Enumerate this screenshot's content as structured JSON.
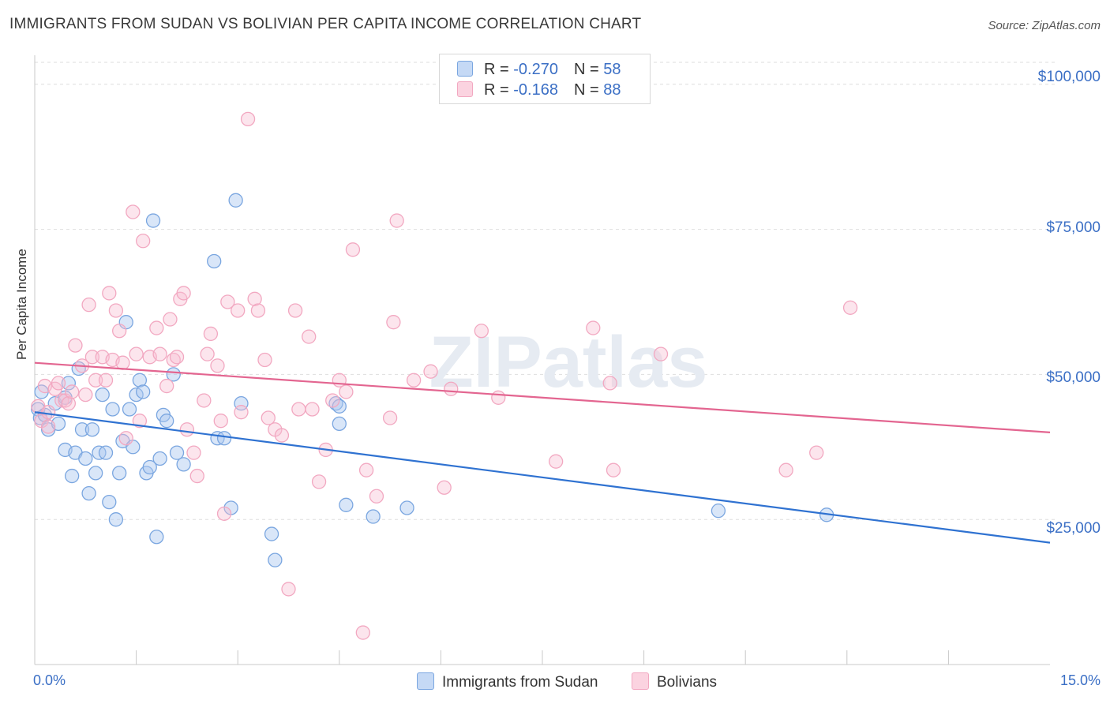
{
  "title": "IMMIGRANTS FROM SUDAN VS BOLIVIAN PER CAPITA INCOME CORRELATION CHART",
  "source": "Source: ZipAtlas.com",
  "watermark": "ZIPatlas",
  "legend_top": {
    "rows": [
      {
        "r_label": "R = ",
        "r_value": "-0.270",
        "n_label": "N = ",
        "n_value": "58"
      },
      {
        "r_label": "R = ",
        "r_value": "-0.168",
        "n_label": "N = ",
        "n_value": "88"
      }
    ]
  },
  "chart_data": {
    "type": "scatter",
    "title": "IMMIGRANTS FROM SUDAN VS BOLIVIAN PER CAPITA INCOME CORRELATION CHART",
    "xlabel": "",
    "ylabel": "Per Capita Income",
    "xlim": [
      0,
      15
    ],
    "ylim": [
      0,
      105000
    ],
    "x_tick_labels": [
      "0.0%",
      "15.0%"
    ],
    "y_ticks": [
      25000,
      50000,
      75000,
      100000
    ],
    "y_tick_labels": [
      "$25,000",
      "$50,000",
      "$75,000",
      "$100,000"
    ],
    "grid": true,
    "legend_position": "bottom",
    "series": [
      {
        "name": "Immigrants from Sudan",
        "color": "#7aa6e0",
        "line_color": "#2f72d1",
        "trend": {
          "x": [
            0,
            15
          ],
          "y": [
            43500,
            21000
          ]
        },
        "points": [
          [
            0.05,
            44000
          ],
          [
            0.08,
            42500
          ],
          [
            0.1,
            47000
          ],
          [
            0.15,
            43000
          ],
          [
            0.2,
            40500
          ],
          [
            0.3,
            45000
          ],
          [
            0.35,
            41500
          ],
          [
            0.45,
            46000
          ],
          [
            0.45,
            37000
          ],
          [
            0.5,
            48500
          ],
          [
            0.55,
            32500
          ],
          [
            0.6,
            36500
          ],
          [
            0.65,
            51000
          ],
          [
            0.7,
            40500
          ],
          [
            0.75,
            35500
          ],
          [
            0.8,
            29500
          ],
          [
            0.85,
            40500
          ],
          [
            0.9,
            33000
          ],
          [
            0.95,
            36500
          ],
          [
            1.0,
            46500
          ],
          [
            1.05,
            36500
          ],
          [
            1.1,
            28000
          ],
          [
            1.15,
            44000
          ],
          [
            1.2,
            25000
          ],
          [
            1.25,
            33000
          ],
          [
            1.3,
            38500
          ],
          [
            1.35,
            59000
          ],
          [
            1.4,
            44000
          ],
          [
            1.45,
            37500
          ],
          [
            1.5,
            46500
          ],
          [
            1.55,
            49000
          ],
          [
            1.6,
            47000
          ],
          [
            1.65,
            33000
          ],
          [
            1.7,
            34000
          ],
          [
            1.75,
            76500
          ],
          [
            1.8,
            22000
          ],
          [
            1.85,
            35500
          ],
          [
            1.9,
            43000
          ],
          [
            1.95,
            42000
          ],
          [
            2.05,
            50000
          ],
          [
            2.1,
            36500
          ],
          [
            2.2,
            34500
          ],
          [
            2.65,
            69500
          ],
          [
            2.7,
            39000
          ],
          [
            2.8,
            39000
          ],
          [
            2.9,
            27000
          ],
          [
            2.97,
            80000
          ],
          [
            3.05,
            45000
          ],
          [
            3.5,
            22500
          ],
          [
            3.55,
            18000
          ],
          [
            4.45,
            45000
          ],
          [
            4.5,
            41500
          ],
          [
            4.5,
            44500
          ],
          [
            4.6,
            27500
          ],
          [
            5.0,
            25500
          ],
          [
            5.5,
            27000
          ],
          [
            10.1,
            26500
          ],
          [
            11.7,
            25800
          ]
        ]
      },
      {
        "name": "Bolivians",
        "color": "#f2a8c1",
        "line_color": "#e36590",
        "trend": {
          "x": [
            0,
            15
          ],
          "y": [
            52000,
            40000
          ]
        },
        "points": [
          [
            0.05,
            44500
          ],
          [
            0.1,
            42000
          ],
          [
            0.15,
            48000
          ],
          [
            0.2,
            43500
          ],
          [
            0.3,
            47500
          ],
          [
            0.35,
            48500
          ],
          [
            0.4,
            45500
          ],
          [
            0.45,
            45500
          ],
          [
            0.5,
            45000
          ],
          [
            0.55,
            47000
          ],
          [
            0.6,
            55000
          ],
          [
            0.7,
            51500
          ],
          [
            0.75,
            46500
          ],
          [
            0.8,
            62000
          ],
          [
            0.85,
            53000
          ],
          [
            0.9,
            49000
          ],
          [
            1.0,
            53000
          ],
          [
            1.05,
            49000
          ],
          [
            1.1,
            64000
          ],
          [
            1.15,
            52500
          ],
          [
            1.2,
            61000
          ],
          [
            1.25,
            57500
          ],
          [
            1.3,
            52000
          ],
          [
            1.35,
            39000
          ],
          [
            1.45,
            78000
          ],
          [
            1.5,
            53500
          ],
          [
            1.55,
            42000
          ],
          [
            1.6,
            73000
          ],
          [
            1.7,
            53000
          ],
          [
            1.8,
            58000
          ],
          [
            1.85,
            53500
          ],
          [
            1.95,
            48000
          ],
          [
            2.0,
            59500
          ],
          [
            2.05,
            52500
          ],
          [
            2.1,
            53000
          ],
          [
            2.15,
            63000
          ],
          [
            2.2,
            64000
          ],
          [
            2.25,
            40500
          ],
          [
            2.35,
            36500
          ],
          [
            2.4,
            32500
          ],
          [
            2.5,
            45500
          ],
          [
            2.55,
            53500
          ],
          [
            2.6,
            57000
          ],
          [
            2.7,
            51500
          ],
          [
            2.75,
            42000
          ],
          [
            2.8,
            26000
          ],
          [
            2.85,
            62500
          ],
          [
            3.0,
            61000
          ],
          [
            3.05,
            43500
          ],
          [
            3.15,
            94000
          ],
          [
            3.25,
            63000
          ],
          [
            3.3,
            61000
          ],
          [
            3.4,
            52500
          ],
          [
            3.45,
            42500
          ],
          [
            3.55,
            40500
          ],
          [
            3.65,
            39500
          ],
          [
            3.75,
            13000
          ],
          [
            3.85,
            61000
          ],
          [
            3.9,
            44000
          ],
          [
            4.05,
            56500
          ],
          [
            4.1,
            44000
          ],
          [
            4.2,
            31500
          ],
          [
            4.3,
            37000
          ],
          [
            4.4,
            45500
          ],
          [
            4.5,
            49000
          ],
          [
            4.6,
            47000
          ],
          [
            4.7,
            71500
          ],
          [
            4.85,
            5500
          ],
          [
            4.9,
            33500
          ],
          [
            5.05,
            29000
          ],
          [
            5.25,
            42500
          ],
          [
            5.3,
            59000
          ],
          [
            5.35,
            76500
          ],
          [
            5.6,
            49000
          ],
          [
            5.85,
            50500
          ],
          [
            6.05,
            30500
          ],
          [
            6.15,
            47500
          ],
          [
            6.6,
            57500
          ],
          [
            6.85,
            46000
          ],
          [
            7.7,
            35000
          ],
          [
            8.25,
            58000
          ],
          [
            8.5,
            48500
          ],
          [
            8.55,
            33500
          ],
          [
            9.25,
            53500
          ],
          [
            11.1,
            33500
          ],
          [
            11.55,
            36500
          ],
          [
            12.05,
            61500
          ],
          [
            0.2,
            41000
          ]
        ]
      }
    ]
  },
  "legend_bottom": [
    "Immigrants from Sudan",
    "Bolivians"
  ]
}
